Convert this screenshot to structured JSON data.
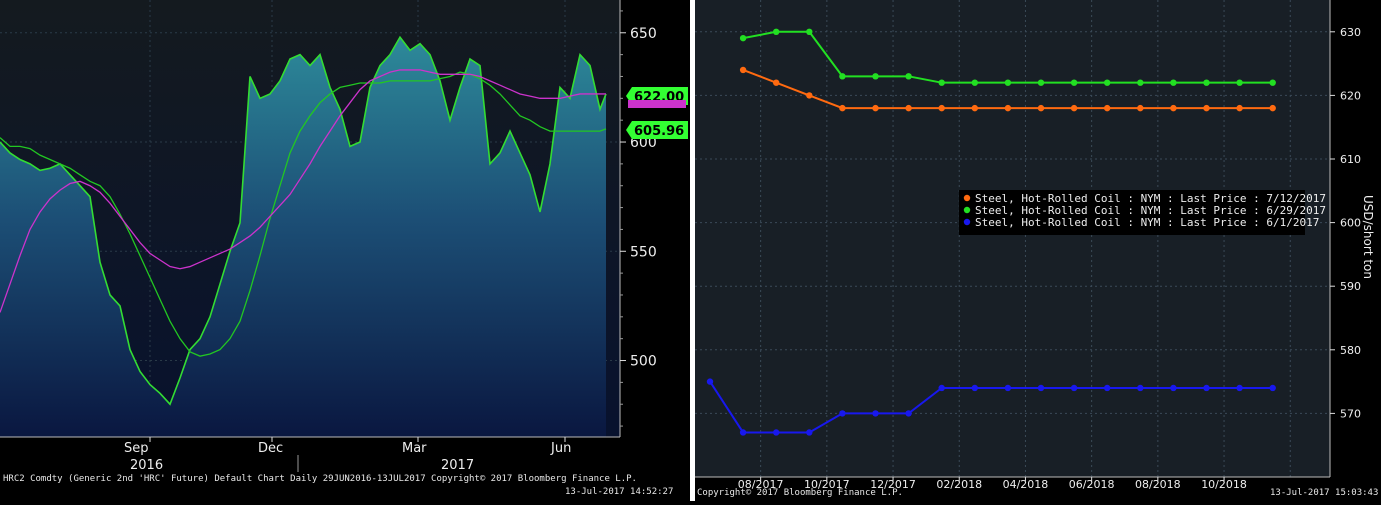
{
  "left_chart": {
    "footer_caption": "HRC2 Comdty (Generic 2nd 'HRC' Future) Default Chart  Daily 29JUN2016-13JUL2017  Copyright© 2017 Bloomberg Finance L.P.",
    "footer_timestamp": "13-Jul-2017 14:52:27"
  },
  "right_chart": {
    "footer_copyright": "Copyright© 2017 Bloomberg Finance L.P.",
    "footer_timestamp": "13-Jul-2017 15:03:43"
  },
  "colors": {
    "background": "#000000",
    "plot_bg_top": "#141a1f",
    "area_top": "#2d8a9a",
    "area_bottom": "#0a1740",
    "price_line": "#33dd33",
    "ma_fast": "#22c722",
    "ma_slow": "#cc33cc",
    "grid": "#2a3a48",
    "orange": "#ff6a10",
    "green": "#22e022",
    "blue": "#1818ee"
  },
  "chart_data": [
    {
      "type": "area",
      "ylim": [
        465,
        665
      ],
      "y_ticks": [
        500,
        550,
        600,
        650
      ],
      "x_tick_labels": [
        "Sep",
        "Dec",
        "Mar",
        "Jun"
      ],
      "x_year_labels": [
        "2016",
        "2017"
      ],
      "x": [
        0,
        10,
        20,
        30,
        40,
        50,
        60,
        70,
        80,
        90,
        100,
        110,
        120,
        130,
        140,
        150,
        160,
        170,
        180,
        190,
        200,
        210,
        220,
        230,
        240,
        250,
        260,
        270,
        280,
        290,
        300,
        310,
        320,
        330,
        340,
        350,
        360,
        370,
        380,
        390,
        400,
        410,
        420,
        430,
        440,
        450,
        460,
        470,
        480,
        490,
        500,
        510,
        520,
        530,
        540,
        550,
        560,
        570,
        580,
        590,
        600,
        606
      ],
      "series": [
        {
          "name": "price",
          "values": [
            600,
            595,
            592,
            590,
            587,
            588,
            590,
            585,
            580,
            575,
            545,
            530,
            525,
            505,
            495,
            489,
            485,
            480,
            492,
            505,
            510,
            520,
            535,
            550,
            563,
            630,
            620,
            622,
            628,
            638,
            640,
            635,
            640,
            625,
            615,
            598,
            600,
            625,
            635,
            640,
            648,
            642,
            645,
            640,
            628,
            610,
            625,
            638,
            635,
            590,
            595,
            605,
            595,
            585,
            568,
            590,
            625,
            620,
            640,
            635,
            615,
            622
          ]
        },
        {
          "name": "ma-fast",
          "values": [
            602,
            598,
            598,
            597,
            594,
            592,
            590,
            588,
            585,
            582,
            580,
            575,
            567,
            558,
            548,
            538,
            528,
            518,
            510,
            504,
            502,
            503,
            505,
            510,
            518,
            532,
            548,
            565,
            580,
            595,
            605,
            612,
            618,
            622,
            625,
            626,
            627,
            627,
            627,
            628,
            628,
            628,
            628,
            628,
            629,
            630,
            632,
            631,
            629,
            626,
            622,
            617,
            612,
            610,
            607,
            605,
            605,
            605,
            605,
            605,
            605,
            606
          ]
        },
        {
          "name": "ma-slow",
          "values": [
            522,
            535,
            548,
            560,
            568,
            574,
            578,
            581,
            582,
            580,
            577,
            572,
            566,
            560,
            554,
            549,
            546,
            543,
            542,
            543,
            545,
            547,
            549,
            551,
            554,
            557,
            561,
            566,
            571,
            576,
            583,
            590,
            598,
            605,
            612,
            618,
            624,
            628,
            630,
            632,
            633,
            633,
            633,
            632,
            631,
            631,
            631,
            631,
            630,
            628,
            626,
            624,
            622,
            621,
            620,
            620,
            620,
            621,
            622,
            622,
            622,
            622
          ]
        }
      ],
      "annotations": [
        {
          "label": "622.00",
          "value": 622.0
        },
        {
          "label": "605.96",
          "value": 605.96
        }
      ]
    },
    {
      "type": "line",
      "ylabel": "USD/short ton",
      "ylim": [
        560,
        635
      ],
      "y_ticks": [
        570,
        580,
        590,
        600,
        610,
        620,
        630
      ],
      "x_tick_labels": [
        "08/2017",
        "10/2017",
        "12/2017",
        "02/2018",
        "04/2018",
        "06/2018",
        "08/2018",
        "10/2018"
      ],
      "legend_position": "right",
      "series": [
        {
          "name": "Steel, Hot-Rolled Coil : NYM : Last Price : 7/12/2017",
          "color_key": "orange",
          "start_index": 1,
          "values": [
            624,
            622,
            620,
            618,
            618,
            618,
            618,
            618,
            618,
            618,
            618,
            618,
            618,
            618,
            618,
            618,
            618
          ]
        },
        {
          "name": "Steel, Hot-Rolled Coil : NYM : Last Price : 6/29/2017",
          "color_key": "green",
          "start_index": 1,
          "values": [
            629,
            630,
            630,
            623,
            623,
            623,
            622,
            622,
            622,
            622,
            622,
            622,
            622,
            622,
            622,
            622,
            622
          ]
        },
        {
          "name": "Steel, Hot-Rolled Coil : NYM : Last Price : 6/1/2017",
          "color_key": "blue",
          "start_index": 0,
          "values": [
            575,
            567,
            567,
            567,
            570,
            570,
            570,
            574,
            574,
            574,
            574,
            574,
            574,
            574,
            574,
            574,
            574,
            574
          ]
        }
      ]
    }
  ]
}
